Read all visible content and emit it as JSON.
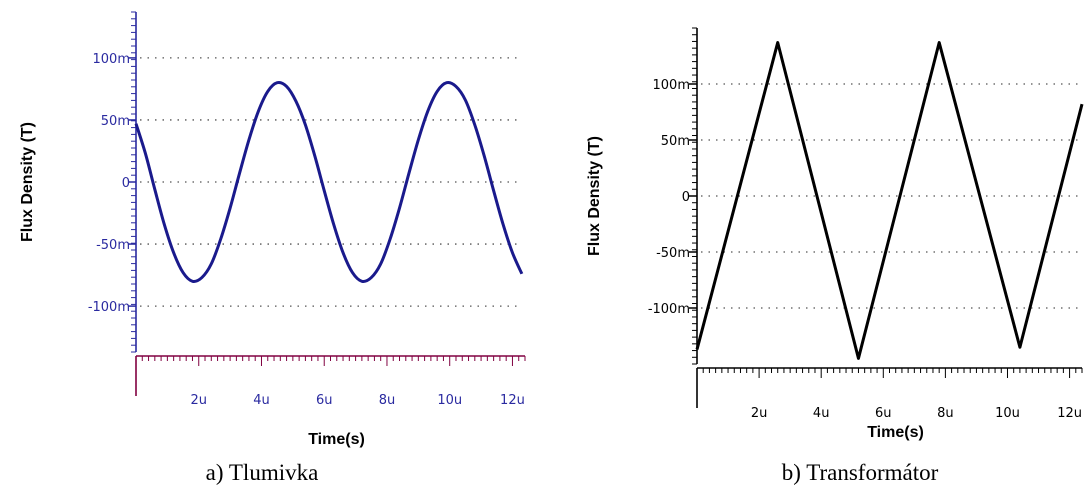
{
  "chart_data": [
    {
      "type": "line",
      "caption": "a) Tlumivka",
      "xlabel": "Time(s)",
      "ylabel": "Flux Density (T)",
      "xlim": [
        0,
        12.4
      ],
      "ylim": [
        -137,
        137
      ],
      "x_ticks": [
        {
          "value": 2,
          "label": "2u"
        },
        {
          "value": 4,
          "label": "4u"
        },
        {
          "value": 6,
          "label": "6u"
        },
        {
          "value": 8,
          "label": "8u"
        },
        {
          "value": 10,
          "label": "10u"
        },
        {
          "value": 12,
          "label": "12u"
        }
      ],
      "y_ticks": [
        {
          "value": 100,
          "label": "100m"
        },
        {
          "value": 50,
          "label": "50m"
        },
        {
          "value": 0,
          "label": "0"
        },
        {
          "value": -50,
          "label": "-50m"
        },
        {
          "value": -100,
          "label": "-100m"
        }
      ],
      "grid": "horizontal-dotted",
      "color": "#1a1a8c",
      "axis_color": "#2a2aa0",
      "x_axis_color": "#800040",
      "series": [
        {
          "x": [
            0.0,
            0.3,
            0.6,
            0.9,
            1.2,
            1.5,
            1.8,
            2.1,
            2.4,
            2.7,
            3.0,
            3.3,
            3.6,
            3.9,
            4.2,
            4.5,
            4.8,
            5.1,
            5.4,
            5.7,
            6.0,
            6.3,
            6.6,
            6.9,
            7.2,
            7.5,
            7.8,
            8.1,
            8.4,
            8.7,
            9.0,
            9.3,
            9.6,
            9.9,
            10.2,
            10.5,
            10.8,
            11.1,
            11.4,
            11.7,
            12.0,
            12.3
          ],
          "values": [
            47,
            23,
            -6,
            -34,
            -57,
            -73,
            -80,
            -77,
            -66,
            -46,
            -21,
            7,
            34,
            57,
            73,
            80,
            77,
            65,
            46,
            21,
            -7,
            -34,
            -57,
            -73,
            -80,
            -77,
            -66,
            -46,
            -21,
            7,
            34,
            57,
            73,
            80,
            77,
            66,
            46,
            21,
            -7,
            -34,
            -57,
            -74
          ]
        }
      ]
    },
    {
      "type": "line",
      "caption": "b) Transformátor",
      "xlabel": "Time(s)",
      "ylabel": "Flux Density (T)",
      "xlim": [
        0,
        12.4
      ],
      "ylim": [
        -150,
        150
      ],
      "x_ticks": [
        {
          "value": 2,
          "label": "2u"
        },
        {
          "value": 4,
          "label": "4u"
        },
        {
          "value": 6,
          "label": "6u"
        },
        {
          "value": 8,
          "label": "8u"
        },
        {
          "value": 10,
          "label": "10u"
        },
        {
          "value": 12,
          "label": "12u"
        }
      ],
      "y_ticks": [
        {
          "value": 100,
          "label": "100m"
        },
        {
          "value": 50,
          "label": "50m"
        },
        {
          "value": 0,
          "label": "0"
        },
        {
          "value": -50,
          "label": "-50m"
        },
        {
          "value": -100,
          "label": "-100m"
        }
      ],
      "grid": "horizontal-dotted",
      "color": "#000000",
      "axis_color": "#000000",
      "x_axis_color": "#000000",
      "series": [
        {
          "x": [
            0.0,
            2.6,
            5.2,
            7.8,
            10.4,
            12.4
          ],
          "values": [
            -137,
            137,
            -145,
            137,
            -135,
            82
          ]
        }
      ]
    }
  ]
}
